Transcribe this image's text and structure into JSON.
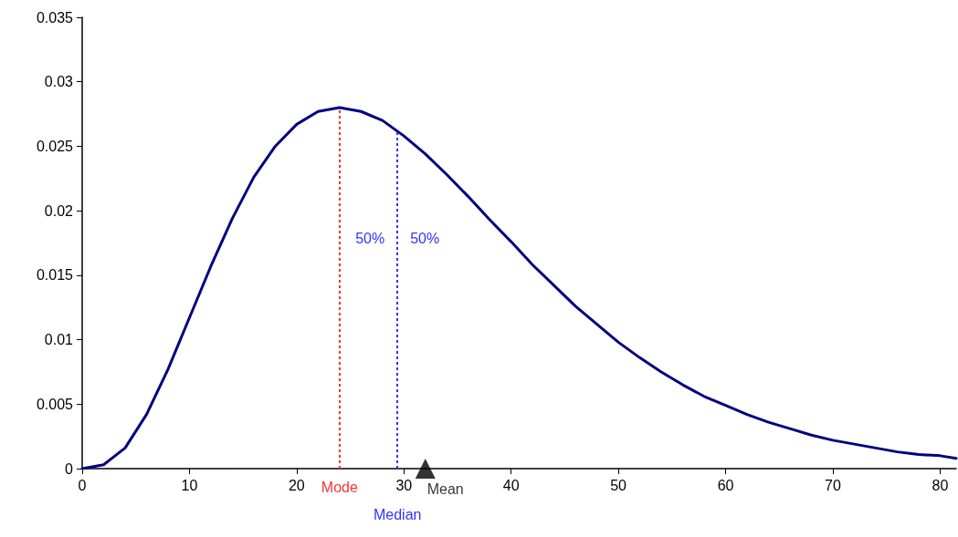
{
  "chart_data": {
    "type": "line",
    "xlim": [
      0,
      81.5
    ],
    "xticks": [
      0,
      10,
      20,
      30,
      40,
      50,
      60,
      70,
      80
    ],
    "ylim": [
      0,
      0.035
    ],
    "yticks": [
      0,
      0.005,
      0.01,
      0.015,
      0.02,
      0.025,
      0.03,
      0.035
    ],
    "grid": false,
    "legend": false,
    "marker": "none",
    "line_style": "solid",
    "series": [
      {
        "color": "#000080",
        "x": [
          0,
          2,
          4,
          6,
          8,
          10,
          12,
          14,
          16,
          18,
          20,
          22,
          24,
          26,
          28,
          30,
          32,
          34,
          36,
          38,
          40,
          42,
          44,
          46,
          48,
          50,
          52,
          54,
          56,
          58,
          60,
          62,
          64,
          66,
          68,
          70,
          72,
          74,
          76,
          78,
          80,
          81.5
        ],
        "values": [
          0,
          0.0003,
          0.0016,
          0.0042,
          0.0077,
          0.0117,
          0.0157,
          0.0194,
          0.0226,
          0.025,
          0.0267,
          0.0277,
          0.028,
          0.0277,
          0.027,
          0.0258,
          0.0244,
          0.0228,
          0.0211,
          0.0193,
          0.0176,
          0.0158,
          0.0142,
          0.0126,
          0.0112,
          0.0098,
          0.0086,
          0.0075,
          0.0065,
          0.0056,
          0.0049,
          0.0042,
          0.0036,
          0.0031,
          0.0026,
          0.0022,
          0.0019,
          0.0016,
          0.0013,
          0.0011,
          0.001,
          0.0008
        ]
      },
      {
        "type": "scatter",
        "name": "Mean",
        "color": "#000000",
        "marker": "triangle",
        "x": [
          32
        ],
        "values": [
          0
        ]
      }
    ],
    "ref_lines": [
      {
        "axis": "x",
        "value": 24,
        "label": "Mode",
        "color": "#ff3333",
        "line_style": "dotted"
      },
      {
        "axis": "x",
        "value": 29.4,
        "label": "Median",
        "color": "#3333ff",
        "line_style": "dotted"
      }
    ],
    "annotations": [
      "50%",
      "50%"
    ]
  }
}
